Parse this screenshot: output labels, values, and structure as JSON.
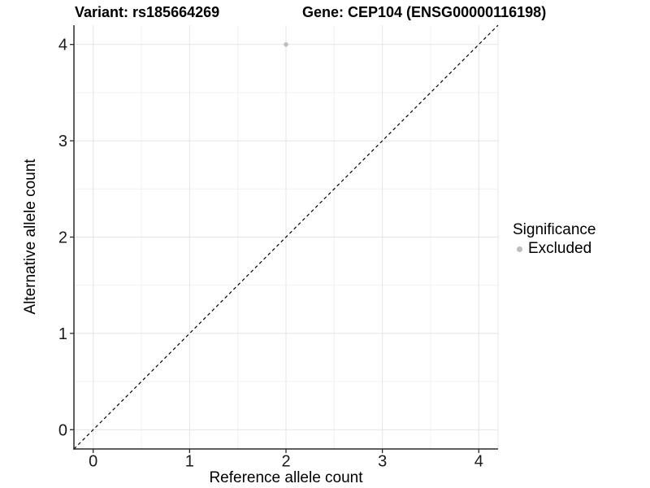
{
  "header": {
    "variant_title": "Variant: rs185664269",
    "gene_title": "Gene: CEP104 (ENSG00000116198)"
  },
  "chart_data": {
    "type": "scatter",
    "title": "Variant: rs185664269 — Gene: CEP104 (ENSG00000116198)",
    "xlabel": "Reference allele count",
    "ylabel": "Alternative allele count",
    "xlim": [
      -0.2,
      4.2
    ],
    "ylim": [
      -0.2,
      4.2
    ],
    "x_ticks": [
      0,
      1,
      2,
      3,
      4
    ],
    "y_ticks": [
      0,
      1,
      2,
      3,
      4
    ],
    "x_minor_ticks": [
      0.5,
      1.5,
      2.5,
      3.5
    ],
    "y_minor_ticks": [
      0.5,
      1.5,
      2.5,
      3.5
    ],
    "grid": "major and minor gridlines on white panel",
    "legend_position": "right",
    "series": [
      {
        "name": "Excluded",
        "color": "#bebebe",
        "points": [
          [
            2,
            4
          ]
        ]
      }
    ],
    "reference_line": {
      "kind": "identity y = x",
      "style": "dashed",
      "color": "#000000"
    }
  },
  "legend": {
    "title": "Significance",
    "items": [
      {
        "label": "Excluded",
        "color": "#bebebe"
      }
    ]
  },
  "colors": {
    "background": "#ffffff",
    "grid_major": "#e4e4e4",
    "grid_minor": "#f1f1f1",
    "panel_edge": "#e7e7e7",
    "axis_line": "#2a2a2a",
    "tick_mark": "#2a2a2a",
    "tick_label": "#1a1a1a",
    "point": "#bebebe",
    "identity_line": "#000000"
  }
}
